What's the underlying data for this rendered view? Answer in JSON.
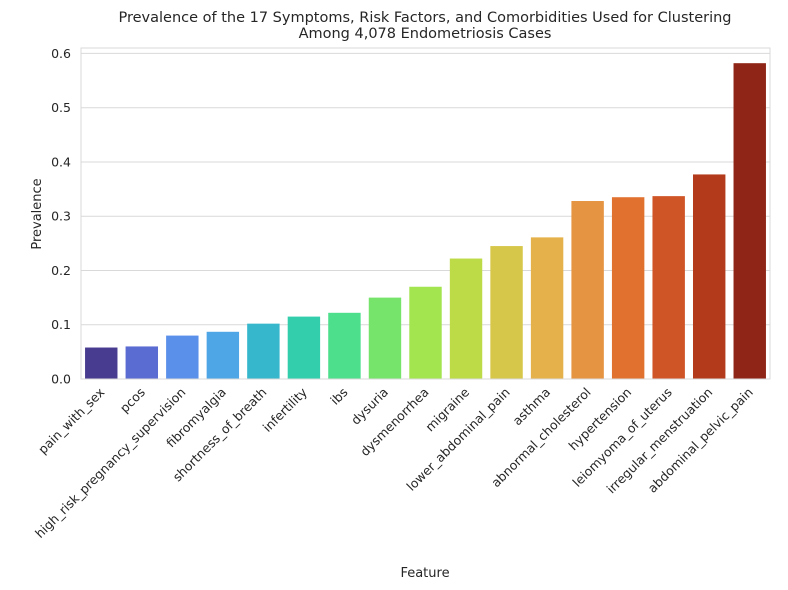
{
  "chart_data": {
    "type": "bar",
    "title_line1": "Prevalence of the 17 Symptoms, Risk Factors, and Comorbidities Used for Clustering",
    "title_line2": "Among 4,078 Endometriosis Cases",
    "xlabel": "Feature",
    "ylabel": "Prevalence",
    "ylim": [
      0,
      0.61
    ],
    "yticks": [
      "0.0",
      "0.1",
      "0.2",
      "0.3",
      "0.4",
      "0.5",
      "0.6"
    ],
    "grid": true,
    "categories": [
      "pain_with_sex",
      "pcos",
      "high_risk_pregnancy_supervision",
      "fibromyalgia",
      "shortness_of_breath",
      "infertility",
      "ibs",
      "dysuria",
      "dysmenorrhea",
      "migraine",
      "lower_abdominal_pain",
      "asthma",
      "abnormal_cholesterol",
      "hypertension",
      "leiomyoma_of_uterus",
      "irregular_menstruation",
      "abdominal_pelvic_pain"
    ],
    "values": [
      0.058,
      0.06,
      0.08,
      0.087,
      0.102,
      0.115,
      0.122,
      0.15,
      0.17,
      0.222,
      0.245,
      0.261,
      0.328,
      0.335,
      0.337,
      0.377,
      0.582
    ],
    "colors": [
      "#473c8f",
      "#5a6bd1",
      "#5a8fea",
      "#4fa6e6",
      "#36b7cc",
      "#33cfad",
      "#4ddf8c",
      "#76e46a",
      "#a3e54f",
      "#bcdb47",
      "#d6c74a",
      "#e5b14b",
      "#e59441",
      "#e0712f",
      "#cf5426",
      "#b33b1b",
      "#8f2516"
    ]
  }
}
